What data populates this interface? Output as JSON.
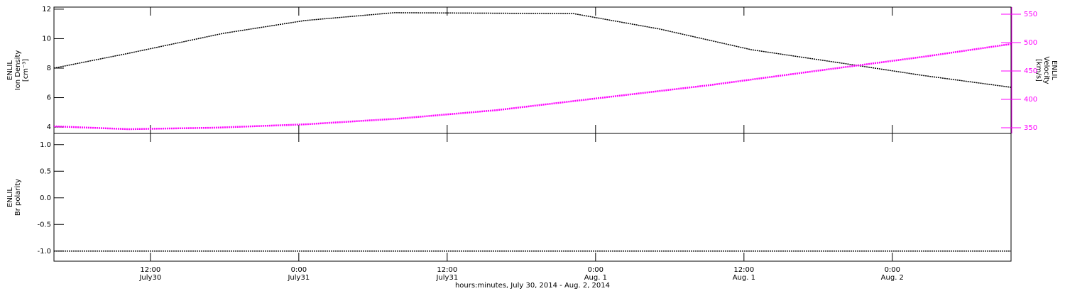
{
  "chart_data": [
    {
      "type": "line",
      "ylabel": [
        "ENLIL",
        "Ion Density",
        "[cm⁻³]"
      ],
      "y2label": [
        "ENLIL",
        "Velocity",
        "[km/s]"
      ],
      "xlim": [
        4.2,
        81.6
      ],
      "ylim": [
        3.57,
        12.14
      ],
      "yticks": [
        4,
        6,
        8,
        10,
        12
      ],
      "y2lim": [
        340,
        562.5
      ],
      "y2ticks": [
        350,
        400,
        450,
        500,
        550
      ],
      "series": [
        {
          "name": "Ion Density",
          "color": "#000000",
          "x": [
            4.2,
            10.2,
            17.9,
            24.5,
            31.7,
            46.2,
            53.2,
            60.6,
            68.7,
            74.5,
            81.6
          ],
          "values": [
            8.0,
            9.0,
            10.36,
            11.23,
            11.76,
            11.7,
            10.65,
            9.25,
            8.24,
            7.5,
            6.7
          ]
        },
        {
          "name": "Velocity",
          "color": "#ff00ff",
          "axis": "y2",
          "x": [
            4.2,
            10.2,
            17.1,
            24.5,
            32.0,
            40.0,
            47.4,
            57.2,
            65.8,
            74.5,
            81.6
          ],
          "values": [
            352.5,
            347.5,
            350,
            356,
            366,
            381,
            400,
            425,
            450,
            475,
            497.5
          ]
        }
      ]
    },
    {
      "type": "line",
      "ylabel": [
        "ENLIL",
        "Br polarity"
      ],
      "xlabel": "hours:minutes, July 30, 2014 - Aug. 2, 2014",
      "xlim": [
        4.2,
        81.6
      ],
      "ylim": [
        -1.19,
        1.21
      ],
      "yticks": [
        {
          "value": 1,
          "label": "1.0"
        },
        {
          "value": 0.5,
          "label": "0.5"
        },
        {
          "value": 0,
          "label": "0.0"
        },
        {
          "value": -0.5,
          "label": "-0.5"
        },
        {
          "value": -1,
          "label": "-1.0"
        }
      ],
      "xticks": [
        {
          "value": 12,
          "label": "12:00",
          "date": "July30"
        },
        {
          "value": 24,
          "label": "0:00",
          "date": "July31"
        },
        {
          "value": 36,
          "label": "12:00",
          "date": "July31"
        },
        {
          "value": 48,
          "label": "0:00",
          "date": "Aug. 1"
        },
        {
          "value": 60,
          "label": "12:00",
          "date": "Aug. 1"
        },
        {
          "value": 72,
          "label": "0:00",
          "date": "Aug. 2"
        }
      ],
      "series": [
        {
          "name": "Br polarity",
          "color": "#000000",
          "x": [
            4.2,
            81.6
          ],
          "values": [
            -1,
            -1
          ]
        }
      ]
    }
  ]
}
